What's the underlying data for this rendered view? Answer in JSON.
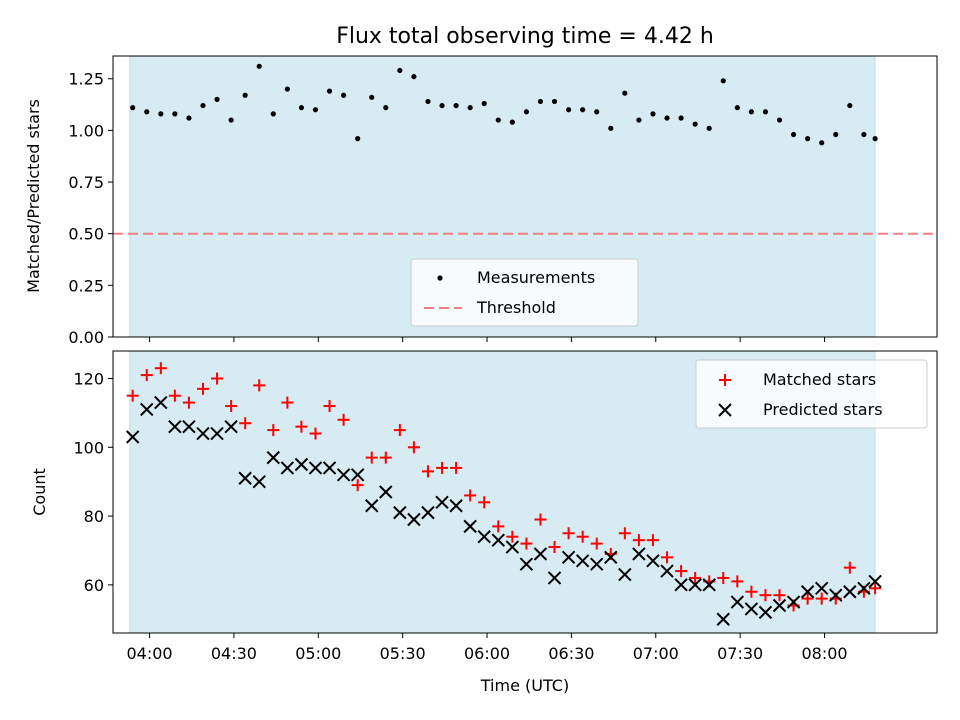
{
  "title": "Flux total observing time = 4.42 h",
  "colors": {
    "observing_span": "#add8e6",
    "measurements": "#000000",
    "threshold": "#f08080",
    "matched": "#ff0000",
    "predicted": "#000000"
  },
  "chart_data": [
    {
      "type": "scatter",
      "ylabel": "Matched/Predicted stars",
      "ylim": [
        0,
        1.36
      ],
      "yticks": [
        "0.00",
        "0.25",
        "0.50",
        "0.75",
        "1.00",
        "1.25"
      ],
      "x_range": [
        "03:47",
        "08:40"
      ],
      "observing_span": [
        "03:53",
        "08:18"
      ],
      "grid": false,
      "legend_placement": "lower center",
      "legend": [
        "Measurements",
        "Threshold"
      ],
      "threshold": 0.5,
      "series": [
        {
          "name": "Measurements",
          "points": [
            [
              "03:54",
              1.11
            ],
            [
              "03:59",
              1.09
            ],
            [
              "04:04",
              1.08
            ],
            [
              "04:09",
              1.08
            ],
            [
              "04:14",
              1.06
            ],
            [
              "04:19",
              1.12
            ],
            [
              "04:24",
              1.15
            ],
            [
              "04:29",
              1.05
            ],
            [
              "04:34",
              1.17
            ],
            [
              "04:39",
              1.31
            ],
            [
              "04:44",
              1.08
            ],
            [
              "04:49",
              1.2
            ],
            [
              "04:54",
              1.11
            ],
            [
              "04:59",
              1.1
            ],
            [
              "05:04",
              1.19
            ],
            [
              "05:09",
              1.17
            ],
            [
              "05:14",
              0.96
            ],
            [
              "05:19",
              1.16
            ],
            [
              "05:24",
              1.11
            ],
            [
              "05:29",
              1.29
            ],
            [
              "05:34",
              1.26
            ],
            [
              "05:39",
              1.14
            ],
            [
              "05:44",
              1.12
            ],
            [
              "05:49",
              1.12
            ],
            [
              "05:54",
              1.11
            ],
            [
              "05:59",
              1.13
            ],
            [
              "06:04",
              1.05
            ],
            [
              "06:09",
              1.04
            ],
            [
              "06:14",
              1.09
            ],
            [
              "06:19",
              1.14
            ],
            [
              "06:24",
              1.14
            ],
            [
              "06:29",
              1.1
            ],
            [
              "06:34",
              1.1
            ],
            [
              "06:39",
              1.09
            ],
            [
              "06:44",
              1.01
            ],
            [
              "06:49",
              1.18
            ],
            [
              "06:54",
              1.05
            ],
            [
              "06:59",
              1.08
            ],
            [
              "07:04",
              1.06
            ],
            [
              "07:09",
              1.06
            ],
            [
              "07:14",
              1.03
            ],
            [
              "07:19",
              1.01
            ],
            [
              "07:24",
              1.24
            ],
            [
              "07:29",
              1.11
            ],
            [
              "07:34",
              1.09
            ],
            [
              "07:39",
              1.09
            ],
            [
              "07:44",
              1.05
            ],
            [
              "07:49",
              0.98
            ],
            [
              "07:54",
              0.96
            ],
            [
              "07:59",
              0.94
            ],
            [
              "08:04",
              0.98
            ],
            [
              "08:09",
              1.12
            ],
            [
              "08:14",
              0.98
            ],
            [
              "08:18",
              0.96
            ]
          ]
        }
      ]
    },
    {
      "type": "scatter",
      "xlabel": "Time (UTC)",
      "ylabel": "Count",
      "ylim": [
        46,
        128
      ],
      "yticks": [
        "60",
        "80",
        "100",
        "120"
      ],
      "xticks": [
        "04:00",
        "04:30",
        "05:00",
        "05:30",
        "06:00",
        "06:30",
        "07:00",
        "07:30",
        "08:00"
      ],
      "x_range": [
        "03:47",
        "08:40"
      ],
      "observing_span": [
        "03:53",
        "08:18"
      ],
      "grid": false,
      "legend_placement": "upper right",
      "legend": [
        "Matched stars",
        "Predicted stars"
      ],
      "series": [
        {
          "name": "Matched stars",
          "points": [
            [
              "03:54",
              115
            ],
            [
              "03:59",
              121
            ],
            [
              "04:04",
              123
            ],
            [
              "04:09",
              115
            ],
            [
              "04:14",
              113
            ],
            [
              "04:19",
              117
            ],
            [
              "04:24",
              120
            ],
            [
              "04:29",
              112
            ],
            [
              "04:34",
              107
            ],
            [
              "04:39",
              118
            ],
            [
              "04:44",
              105
            ],
            [
              "04:49",
              113
            ],
            [
              "04:54",
              106
            ],
            [
              "04:59",
              104
            ],
            [
              "05:04",
              112
            ],
            [
              "05:09",
              108
            ],
            [
              "05:14",
              89
            ],
            [
              "05:19",
              97
            ],
            [
              "05:24",
              97
            ],
            [
              "05:29",
              105
            ],
            [
              "05:34",
              100
            ],
            [
              "05:39",
              93
            ],
            [
              "05:44",
              94
            ],
            [
              "05:49",
              94
            ],
            [
              "05:54",
              86
            ],
            [
              "05:59",
              84
            ],
            [
              "06:04",
              77
            ],
            [
              "06:09",
              74
            ],
            [
              "06:14",
              72
            ],
            [
              "06:19",
              79
            ],
            [
              "06:24",
              71
            ],
            [
              "06:29",
              75
            ],
            [
              "06:34",
              74
            ],
            [
              "06:39",
              72
            ],
            [
              "06:44",
              69
            ],
            [
              "06:49",
              75
            ],
            [
              "06:54",
              73
            ],
            [
              "06:59",
              73
            ],
            [
              "07:04",
              68
            ],
            [
              "07:09",
              64
            ],
            [
              "07:14",
              62
            ],
            [
              "07:19",
              61
            ],
            [
              "07:24",
              62
            ],
            [
              "07:29",
              61
            ],
            [
              "07:34",
              58
            ],
            [
              "07:39",
              57
            ],
            [
              "07:44",
              57
            ],
            [
              "07:49",
              54
            ],
            [
              "07:54",
              56
            ],
            [
              "07:59",
              56
            ],
            [
              "08:04",
              56
            ],
            [
              "08:09",
              65
            ],
            [
              "08:14",
              58
            ],
            [
              "08:18",
              59
            ]
          ]
        },
        {
          "name": "Predicted stars",
          "points": [
            [
              "03:54",
              103
            ],
            [
              "03:59",
              111
            ],
            [
              "04:04",
              113
            ],
            [
              "04:09",
              106
            ],
            [
              "04:14",
              106
            ],
            [
              "04:19",
              104
            ],
            [
              "04:24",
              104
            ],
            [
              "04:29",
              106
            ],
            [
              "04:34",
              91
            ],
            [
              "04:39",
              90
            ],
            [
              "04:44",
              97
            ],
            [
              "04:49",
              94
            ],
            [
              "04:54",
              95
            ],
            [
              "04:59",
              94
            ],
            [
              "05:04",
              94
            ],
            [
              "05:09",
              92
            ],
            [
              "05:14",
              92
            ],
            [
              "05:19",
              83
            ],
            [
              "05:24",
              87
            ],
            [
              "05:29",
              81
            ],
            [
              "05:34",
              79
            ],
            [
              "05:39",
              81
            ],
            [
              "05:44",
              84
            ],
            [
              "05:49",
              83
            ],
            [
              "05:54",
              77
            ],
            [
              "05:59",
              74
            ],
            [
              "06:04",
              73
            ],
            [
              "06:09",
              71
            ],
            [
              "06:14",
              66
            ],
            [
              "06:19",
              69
            ],
            [
              "06:24",
              62
            ],
            [
              "06:29",
              68
            ],
            [
              "06:34",
              67
            ],
            [
              "06:39",
              66
            ],
            [
              "06:44",
              68
            ],
            [
              "06:49",
              63
            ],
            [
              "06:54",
              69
            ],
            [
              "06:59",
              67
            ],
            [
              "07:04",
              64
            ],
            [
              "07:09",
              60
            ],
            [
              "07:14",
              60
            ],
            [
              "07:19",
              60
            ],
            [
              "07:24",
              50
            ],
            [
              "07:29",
              55
            ],
            [
              "07:34",
              53
            ],
            [
              "07:39",
              52
            ],
            [
              "07:44",
              54
            ],
            [
              "07:49",
              55
            ],
            [
              "07:54",
              58
            ],
            [
              "07:59",
              59
            ],
            [
              "08:04",
              57
            ],
            [
              "08:09",
              58
            ],
            [
              "08:14",
              59
            ],
            [
              "08:18",
              61
            ]
          ]
        }
      ]
    }
  ]
}
